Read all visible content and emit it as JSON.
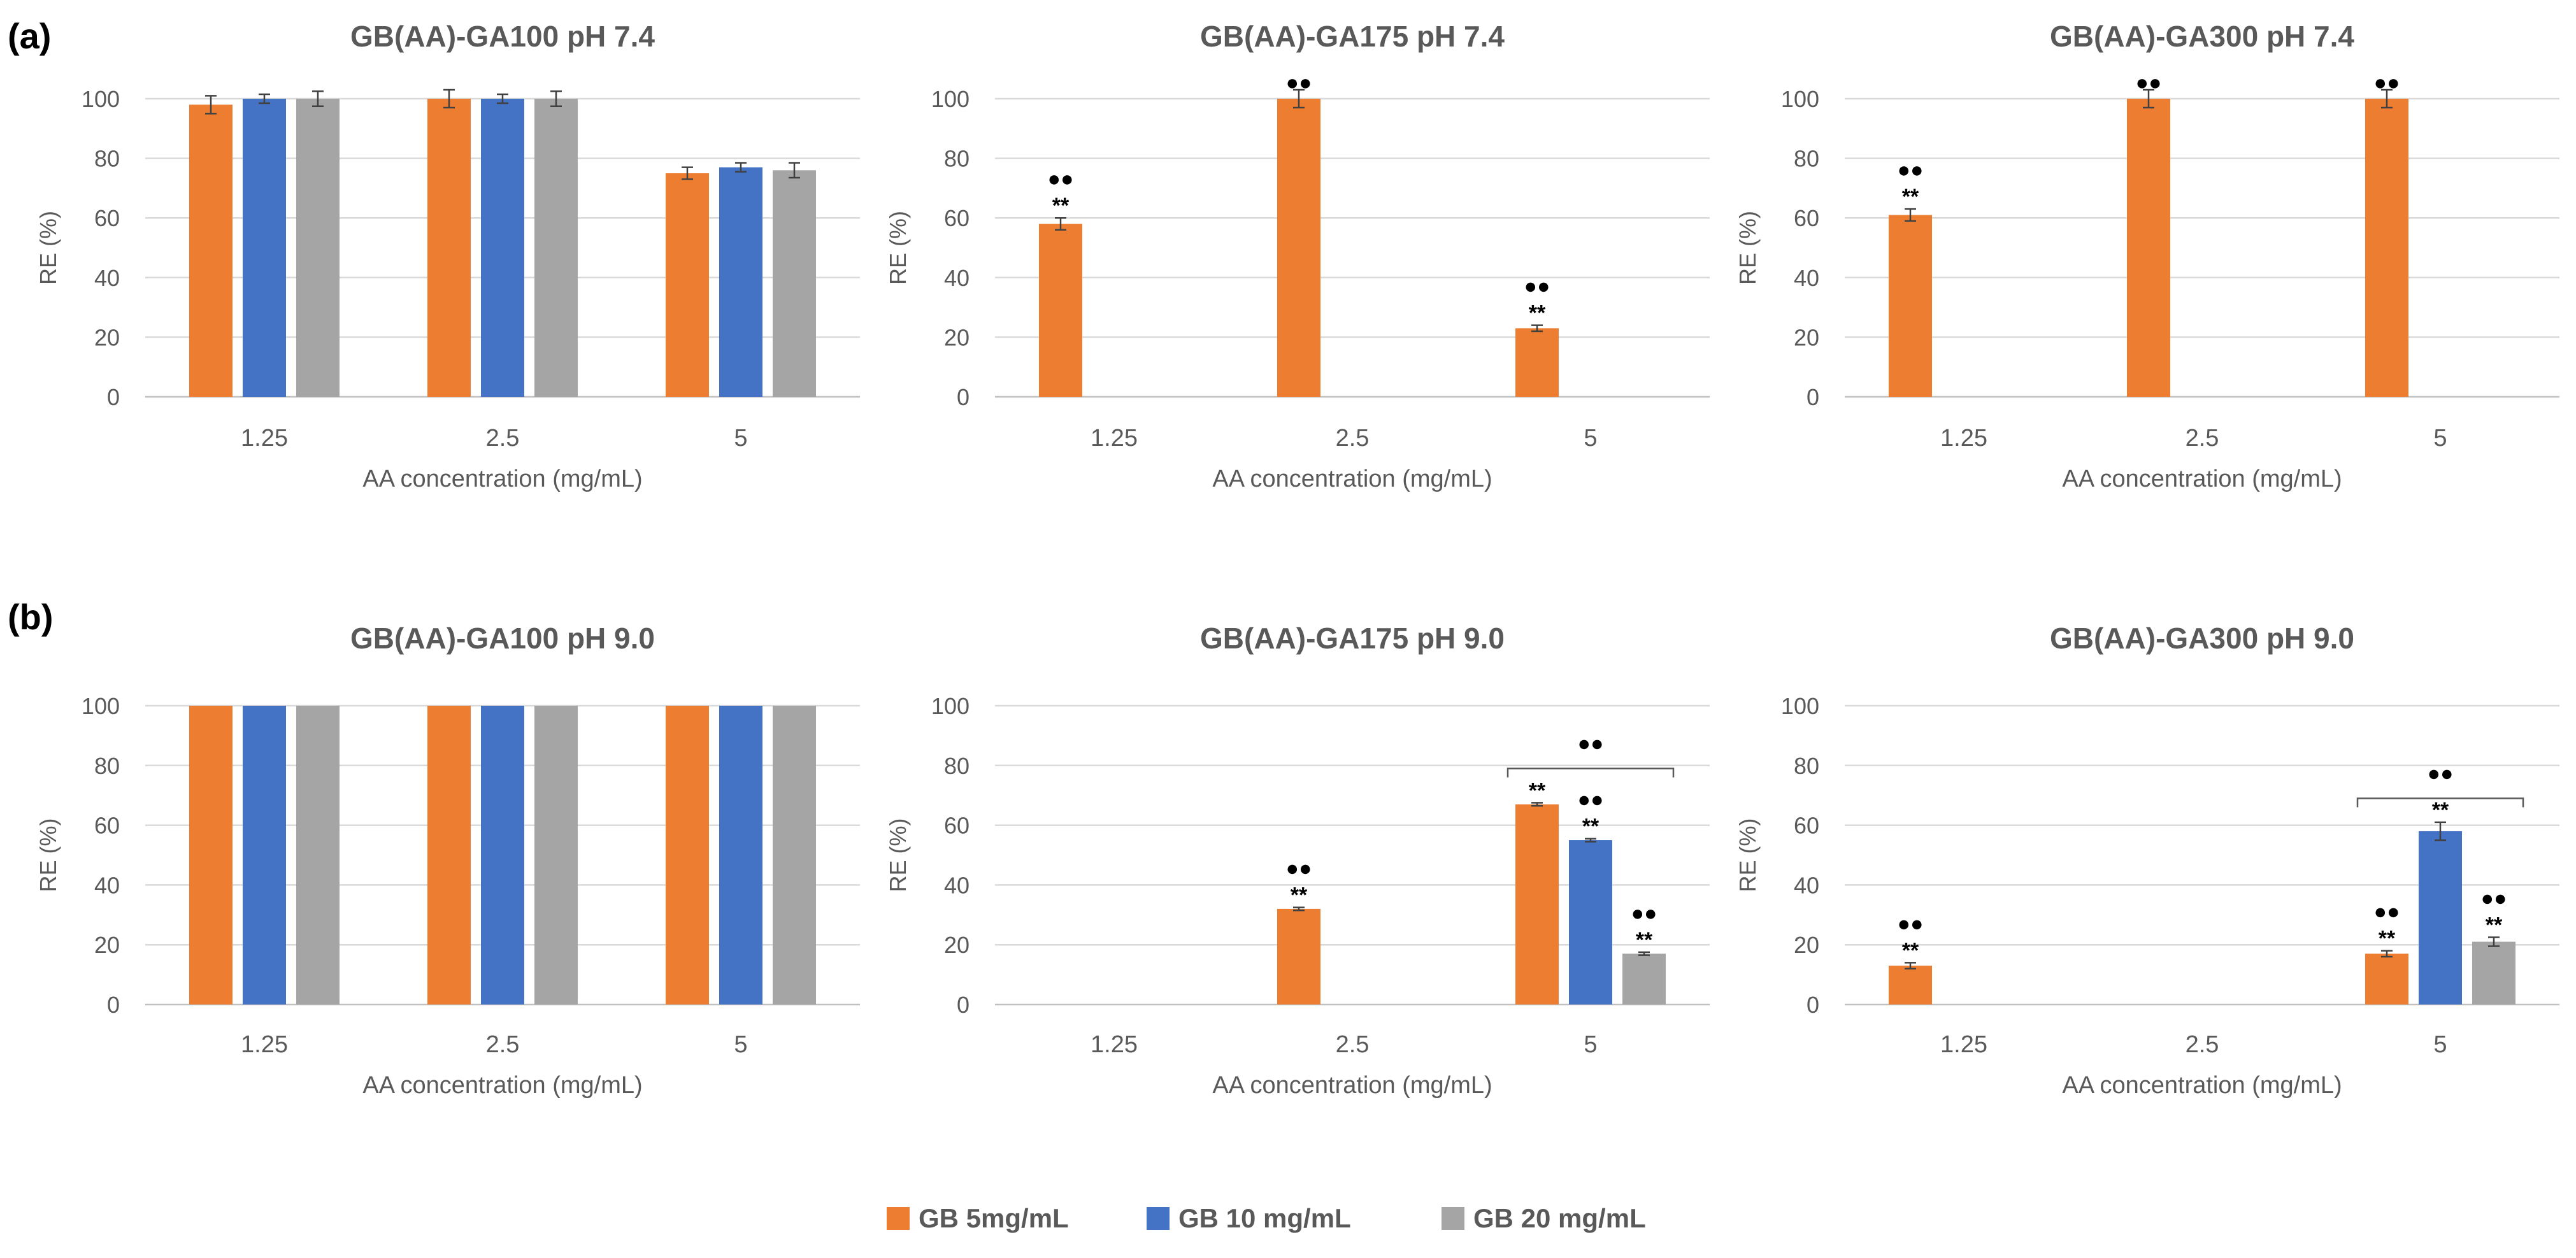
{
  "panel_labels": [
    "(a)",
    "(b)"
  ],
  "legend": [
    {
      "label": "GB 5mg/mL",
      "color": "#ED7D31"
    },
    {
      "label": "GB 10 mg/mL",
      "color": "#4472C4"
    },
    {
      "label": "GB 20 mg/mL",
      "color": "#A5A5A5"
    }
  ],
  "colors": {
    "grid": "#D9D9D9",
    "axis_text": "#595959",
    "marker": "#000000"
  },
  "marker_symbol": "●●",
  "chart_data": [
    {
      "type": "bar",
      "title": "GB(AA)-GA100  pH 7.4",
      "xlabel": "AA concentration (mg/mL)",
      "ylabel": "RE (%)",
      "categories": [
        "1.25",
        "2.5",
        "5"
      ],
      "ylim": [
        0,
        100
      ],
      "yticks": [
        0,
        20,
        40,
        60,
        80,
        100
      ],
      "grid": true,
      "series": [
        {
          "name": "GB 5mg/mL",
          "values": [
            98,
            100,
            75
          ],
          "errors": [
            3,
            3,
            2
          ]
        },
        {
          "name": "GB 10 mg/mL",
          "values": [
            100,
            100,
            77
          ],
          "errors": [
            1.5,
            1.5,
            1.5
          ]
        },
        {
          "name": "GB 20 mg/mL",
          "values": [
            100,
            100,
            76
          ],
          "errors": [
            2.5,
            2.5,
            2.5
          ]
        }
      ],
      "annotations": []
    },
    {
      "type": "bar",
      "title": "GB(AA)-GA175  pH 7.4",
      "xlabel": "AA concentration (mg/mL)",
      "ylabel": "RE (%)",
      "categories": [
        "1.25",
        "2.5",
        "5"
      ],
      "ylim": [
        0,
        100
      ],
      "yticks": [
        0,
        20,
        40,
        60,
        80,
        100
      ],
      "grid": true,
      "series": [
        {
          "name": "GB 5mg/mL",
          "values": [
            58,
            100,
            23
          ],
          "errors": [
            2,
            3,
            1
          ]
        },
        {
          "name": "GB 10 mg/mL",
          "values": [
            0,
            0,
            0
          ],
          "errors": [
            0,
            0,
            0
          ]
        },
        {
          "name": "GB 20 mg/mL",
          "values": [
            0,
            0,
            0
          ],
          "errors": [
            0,
            0,
            0
          ]
        }
      ],
      "annotations": [
        {
          "category": 0,
          "series": 0,
          "stars": "**",
          "dots": true
        },
        {
          "category": 1,
          "series": 0,
          "stars": "",
          "dots": true
        },
        {
          "category": 2,
          "series": 0,
          "stars": "**",
          "dots": true
        }
      ],
      "brackets": []
    },
    {
      "type": "bar",
      "title": "GB(AA)-GA300  pH 7.4",
      "xlabel": "AA concentration (mg/mL)",
      "ylabel": "RE (%)",
      "categories": [
        "1.25",
        "2.5",
        "5"
      ],
      "ylim": [
        0,
        100
      ],
      "yticks": [
        0,
        20,
        40,
        60,
        80,
        100
      ],
      "grid": true,
      "series": [
        {
          "name": "GB 5mg/mL",
          "values": [
            61,
            100,
            100
          ],
          "errors": [
            2,
            3,
            3
          ]
        },
        {
          "name": "GB 10 mg/mL",
          "values": [
            0,
            0,
            0
          ],
          "errors": [
            0,
            0,
            0
          ]
        },
        {
          "name": "GB 20 mg/mL",
          "values": [
            0,
            0,
            0
          ],
          "errors": [
            0,
            0,
            0
          ]
        }
      ],
      "annotations": [
        {
          "category": 0,
          "series": 0,
          "stars": "**",
          "dots": true
        },
        {
          "category": 1,
          "series": 0,
          "stars": "",
          "dots": true
        },
        {
          "category": 2,
          "series": 0,
          "stars": "",
          "dots": true
        }
      ],
      "brackets": []
    },
    {
      "type": "bar",
      "title": "GB(AA)-GA100 pH 9.0",
      "xlabel": "AA concentration (mg/mL)",
      "ylabel": "RE (%)",
      "categories": [
        "1.25",
        "2.5",
        "5"
      ],
      "ylim": [
        0,
        100
      ],
      "yticks": [
        0,
        20,
        40,
        60,
        80,
        100
      ],
      "grid": true,
      "series": [
        {
          "name": "GB 5mg/mL",
          "values": [
            100,
            100,
            100
          ],
          "errors": [
            0,
            0,
            0
          ]
        },
        {
          "name": "GB 10 mg/mL",
          "values": [
            100,
            100,
            100
          ],
          "errors": [
            0,
            0,
            0
          ]
        },
        {
          "name": "GB 20 mg/mL",
          "values": [
            100,
            100,
            100
          ],
          "errors": [
            0,
            0,
            0
          ]
        }
      ],
      "annotations": [],
      "brackets": []
    },
    {
      "type": "bar",
      "title": "GB(AA)-GA175 pH 9.0",
      "xlabel": "AA concentration (mg/mL)",
      "ylabel": "RE (%)",
      "categories": [
        "1.25",
        "2.5",
        "5"
      ],
      "ylim": [
        0,
        100
      ],
      "yticks": [
        0,
        20,
        40,
        60,
        80,
        100
      ],
      "grid": true,
      "series": [
        {
          "name": "GB 5mg/mL",
          "values": [
            0,
            32,
            67
          ],
          "errors": [
            0,
            0.5,
            0.5
          ]
        },
        {
          "name": "GB 10 mg/mL",
          "values": [
            0,
            0,
            55
          ],
          "errors": [
            0,
            0,
            0.5
          ]
        },
        {
          "name": "GB 20 mg/mL",
          "values": [
            0,
            0,
            17
          ],
          "errors": [
            0,
            0,
            0.5
          ]
        }
      ],
      "annotations": [
        {
          "category": 1,
          "series": 0,
          "stars": "**",
          "dots": true
        },
        {
          "category": 2,
          "series": 0,
          "stars": "**",
          "dots": false
        },
        {
          "category": 2,
          "series": 1,
          "stars": "**",
          "dots": true
        },
        {
          "category": 2,
          "series": 2,
          "stars": "**",
          "dots": true
        }
      ],
      "brackets": [
        {
          "category": 2,
          "level": 79,
          "dots": true
        }
      ]
    },
    {
      "type": "bar",
      "title": "GB(AA)-GA300 pH 9.0",
      "xlabel": "AA concentration (mg/mL)",
      "ylabel": "RE (%)",
      "categories": [
        "1.25",
        "2.5",
        "5"
      ],
      "ylim": [
        0,
        100
      ],
      "yticks": [
        0,
        20,
        40,
        60,
        80,
        100
      ],
      "grid": true,
      "series": [
        {
          "name": "GB 5mg/mL",
          "values": [
            13,
            0,
            17
          ],
          "errors": [
            1,
            0,
            1
          ]
        },
        {
          "name": "GB 10 mg/mL",
          "values": [
            0,
            0,
            58
          ],
          "errors": [
            0,
            0,
            3
          ]
        },
        {
          "name": "GB 20 mg/mL",
          "values": [
            0,
            0,
            21
          ],
          "errors": [
            0,
            0,
            1.5
          ]
        }
      ],
      "annotations": [
        {
          "category": 0,
          "series": 0,
          "stars": "**",
          "dots": true
        },
        {
          "category": 2,
          "series": 0,
          "stars": "**",
          "dots": true
        },
        {
          "category": 2,
          "series": 1,
          "stars": "**",
          "dots": false
        },
        {
          "category": 2,
          "series": 2,
          "stars": "**",
          "dots": true
        }
      ],
      "brackets": [
        {
          "category": 2,
          "level": 69,
          "dots": true
        }
      ]
    }
  ]
}
